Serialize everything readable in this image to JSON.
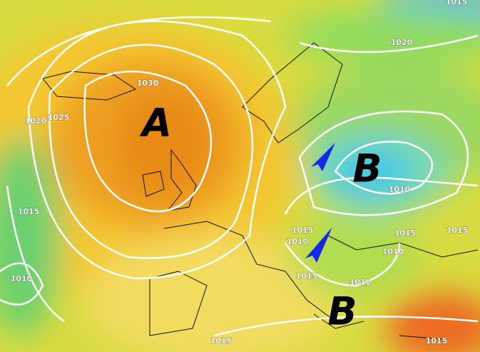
{
  "pressure_centers": [
    {
      "label": "A"
    },
    {
      "label": "B"
    },
    {
      "label": "B"
    }
  ],
  "isobar_labels": [
    "1015",
    "1020",
    "1030",
    "1025",
    "1020",
    "1015",
    "1010",
    "1010",
    "1015",
    "1010",
    "1015",
    "1015",
    "1010",
    "1010",
    "1015",
    "1015",
    "1015"
  ]
}
